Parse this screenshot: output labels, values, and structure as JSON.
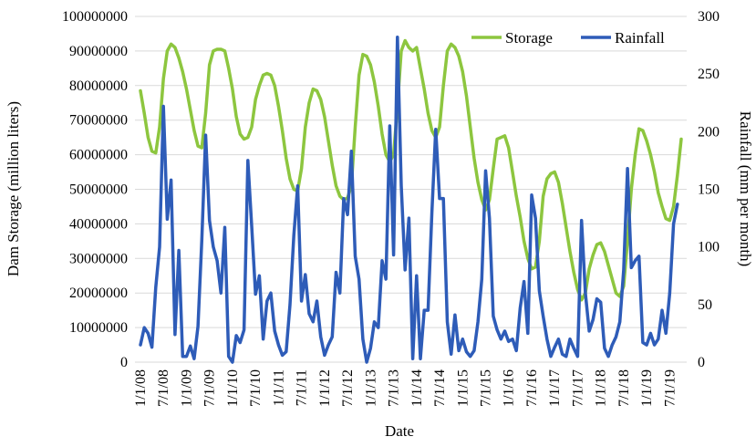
{
  "chart_data": {
    "type": "line",
    "xlabel": "Date",
    "ylabel_left": "Dam Storage (million liters)",
    "ylabel_right": "Rainfall (mm per month)",
    "ylim_left": [
      0,
      100000000
    ],
    "ylim_right": [
      0,
      300
    ],
    "yticks_left": [
      "0",
      "10000000",
      "20000000",
      "30000000",
      "40000000",
      "50000000",
      "60000000",
      "70000000",
      "80000000",
      "90000000",
      "100000000"
    ],
    "yticks_right": [
      "0",
      "50",
      "100",
      "150",
      "200",
      "250",
      "300"
    ],
    "x_tick_labels": [
      "1/1/08",
      "7/1/08",
      "1/1/09",
      "7/1/09",
      "1/1/10",
      "7/1/10",
      "1/1/11",
      "7/1/11",
      "1/1/12",
      "7/1/12",
      "1/1/13",
      "7/1/13",
      "1/1/14",
      "7/1/14",
      "1/1/15",
      "7/1/15",
      "1/1/16",
      "7/1/16",
      "1/1/17",
      "7/1/17",
      "1/1/18",
      "7/1/18",
      "1/1/19",
      "7/1/19"
    ],
    "x_start": "2008-01",
    "grid": true,
    "legend": "top-right",
    "series": [
      {
        "name": "Storage",
        "axis": "left",
        "color": "#8DC63F",
        "values": [
          78500000,
          72000000,
          65000000,
          61000000,
          60500000,
          68000000,
          82000000,
          90000000,
          92000000,
          91000000,
          88000000,
          84000000,
          79000000,
          73000000,
          67000000,
          62500000,
          62000000,
          72000000,
          86000000,
          90000000,
          90500000,
          90500000,
          90000000,
          85000000,
          79000000,
          71000000,
          66000000,
          64500000,
          65000000,
          68000000,
          76000000,
          80000000,
          83000000,
          83500000,
          83000000,
          80000000,
          74000000,
          67000000,
          59000000,
          53000000,
          50000000,
          49500000,
          56000000,
          68000000,
          75000000,
          79000000,
          78500000,
          76000000,
          71000000,
          64000000,
          57000000,
          51000000,
          48000000,
          47000000,
          47500000,
          51000000,
          68000000,
          83000000,
          89000000,
          88500000,
          86000000,
          81000000,
          74000000,
          66000000,
          60000000,
          58000000,
          60000000,
          74000000,
          90000000,
          93000000,
          91000000,
          90000000,
          91000000,
          85000000,
          79000000,
          72000000,
          67000000,
          65000000,
          68000000,
          80000000,
          90000000,
          92000000,
          91000000,
          88500000,
          84000000,
          77000000,
          68000000,
          59000000,
          52000000,
          47000000,
          44000000,
          47000000,
          56000000,
          64500000,
          65000000,
          65500000,
          62000000,
          55000000,
          48000000,
          42000000,
          35000000,
          30000000,
          27000000,
          27500000,
          35000000,
          48000000,
          53000000,
          54500000,
          55000000,
          52000000,
          46000000,
          39000000,
          32000000,
          26000000,
          21000000,
          18000000,
          20000000,
          27000000,
          31000000,
          34000000,
          34500000,
          32000000,
          28000000,
          24000000,
          20000000,
          19000000,
          22000000,
          35000000,
          50000000,
          60000000,
          67500000,
          67000000,
          64000000,
          60000000,
          55000000,
          49000000,
          45000000,
          41500000,
          41000000,
          45000000,
          54000000,
          64500000
        ]
      },
      {
        "name": "Rainfall",
        "axis": "right",
        "color": "#2E5CB8",
        "values": [
          15,
          30,
          25,
          13,
          65,
          100,
          222,
          124,
          158,
          24,
          97,
          5,
          5,
          14,
          3,
          31,
          106,
          197,
          123,
          100,
          88,
          60,
          117,
          5,
          0,
          23,
          17,
          28,
          175,
          118,
          59,
          75,
          20,
          53,
          60,
          27,
          15,
          6,
          9,
          50,
          110,
          153,
          53,
          76,
          42,
          35,
          53,
          22,
          6,
          15,
          22,
          78,
          60,
          142,
          128,
          183,
          92,
          72,
          20,
          0,
          12,
          35,
          30,
          88,
          72,
          205,
          93,
          282,
          153,
          80,
          125,
          3,
          75,
          3,
          45,
          45,
          130,
          202,
          142,
          142,
          35,
          7,
          41,
          10,
          20,
          9,
          5,
          10,
          35,
          72,
          166,
          125,
          40,
          28,
          20,
          27,
          18,
          20,
          10,
          47,
          70,
          25,
          145,
          125,
          62,
          40,
          20,
          5,
          13,
          20,
          7,
          5,
          20,
          12,
          5,
          123,
          60,
          27,
          37,
          55,
          52,
          12,
          5,
          15,
          22,
          35,
          80,
          168,
          82,
          88,
          92,
          17,
          15,
          25,
          15,
          20,
          45,
          25,
          60,
          120,
          137
        ]
      }
    ]
  }
}
